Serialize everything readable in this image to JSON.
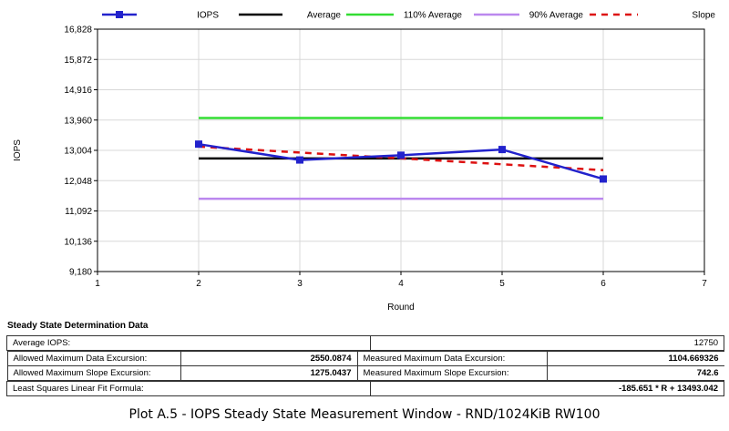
{
  "chart_data": {
    "type": "line",
    "xlabel": "Round",
    "ylabel": "IOPS",
    "xlim": [
      1,
      7
    ],
    "ylim": [
      9180,
      16828
    ],
    "x_ticks": [
      "1",
      "2",
      "3",
      "4",
      "5",
      "6",
      "7"
    ],
    "y_ticks": [
      "9,180",
      "10,136",
      "11,092",
      "12,048",
      "13,004",
      "13,960",
      "14,916",
      "15,872",
      "16,828"
    ],
    "grid": true,
    "legend_position": "top",
    "series": [
      {
        "name": "IOPS",
        "color": "#2222cc",
        "style": "solid",
        "marker": "square",
        "x": [
          2,
          3,
          4,
          5,
          6
        ],
        "y": [
          13200,
          12700,
          12850,
          13030,
          12100
        ]
      },
      {
        "name": "Average",
        "color": "#000000",
        "style": "solid",
        "x": [
          2,
          6
        ],
        "y": [
          12750,
          12750
        ]
      },
      {
        "name": "110% Average",
        "color": "#33dd33",
        "style": "solid",
        "x": [
          2,
          6
        ],
        "y": [
          14025,
          14025
        ]
      },
      {
        "name": "90% Average",
        "color": "#bb88ee",
        "style": "solid",
        "x": [
          2,
          6
        ],
        "y": [
          11475,
          11475
        ]
      },
      {
        "name": "Slope",
        "color": "#dd1111",
        "style": "dashed",
        "x": [
          2,
          6
        ],
        "y": [
          13121.7,
          12379.1
        ]
      }
    ]
  },
  "steady_state": {
    "title": "Steady State Determination Data",
    "average_iops_label": "Average IOPS:",
    "average_iops_value": "12750",
    "allowed_data_excursion_label": "Allowed Maximum Data Excursion:",
    "allowed_data_excursion_value": "2550.0874",
    "measured_data_excursion_label": "Measured Maximum Data Excursion:",
    "measured_data_excursion_value": "1104.669326",
    "allowed_slope_excursion_label": "Allowed Maximum Slope Excursion:",
    "allowed_slope_excursion_value": "1275.0437",
    "measured_slope_excursion_label": "Measured Maximum Slope Excursion:",
    "measured_slope_excursion_value": "742.6",
    "fit_formula_label": "Least Squares Linear Fit Formula:",
    "fit_formula_value": "-185.651 * R + 13493.042"
  },
  "caption": "Plot A.5 - IOPS Steady State Measurement Window - RND/1024KiB RW100"
}
